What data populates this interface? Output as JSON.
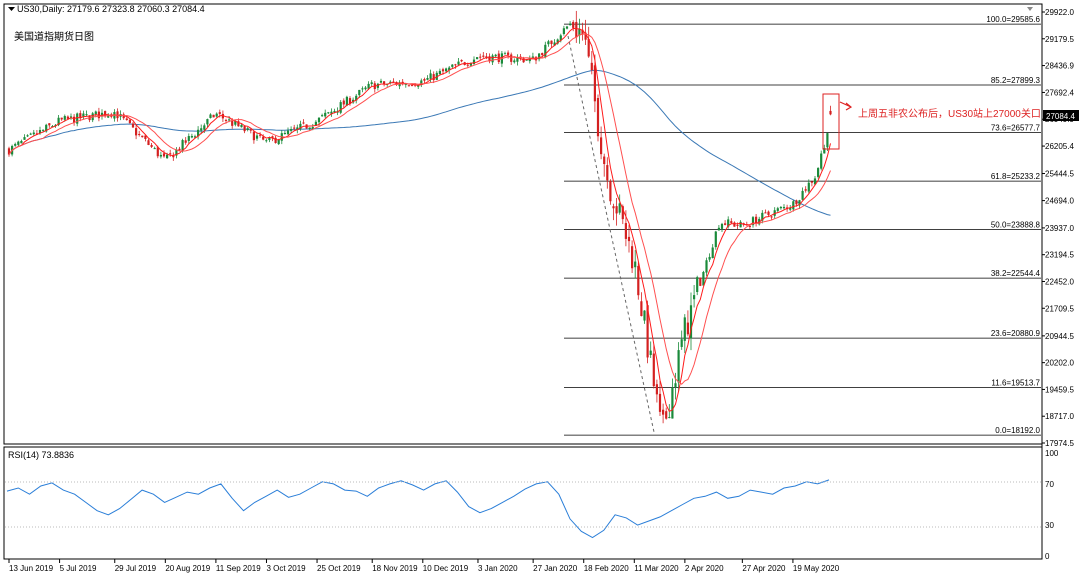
{
  "window": {
    "symbol_line": "US30,Daily:  27179.6 27323.8 27060.3 27084.4",
    "subtitle": "美国道指期货日图",
    "price_tag": "27084.4"
  },
  "annotation": "上周五非农公布后，US30站上27000关口",
  "colors": {
    "up_candle": "#1a8a3a",
    "down_candle": "#d42020",
    "ma_fast": "#ff1a1a",
    "ma_slow": "#ff5050",
    "ma_long": "#3a78b5",
    "rsi_line": "#2a7ed8",
    "fib_line": "#000000",
    "annotation": "#d22222"
  },
  "chart_data": [
    {
      "type": "candlestick",
      "name": "US30 Daily",
      "last": {
        "open": 27179.6,
        "high": 27323.8,
        "low": 27060.3,
        "close": 27084.4
      },
      "ylim": [
        17974.5,
        29922.0
      ],
      "y_ticks": [
        "29922.0",
        "29179.5",
        "28436.9",
        "27692.4",
        "26949.9",
        "26205.4",
        "25444.5",
        "24694.0",
        "23937.0",
        "23194.5",
        "22452.0",
        "21709.5",
        "20944.5",
        "20202.0",
        "19459.5",
        "18717.0",
        "17974.5"
      ],
      "x_ticks": [
        "13 Jun 2019",
        "5 Jul 2019",
        "29 Jul 2019",
        "20 Aug 2019",
        "11 Sep 2019",
        "3 Oct 2019",
        "25 Oct 2019",
        "18 Nov 2019",
        "10 Dec 2019",
        "3 Jan 2020",
        "27 Jan 2020",
        "18 Feb 2020",
        "11 Mar 2020",
        "2 Apr 2020",
        "27 Apr 2020",
        "19 May 2020"
      ],
      "key_points": [
        {
          "date": "13 Jun 2019",
          "price": 26100
        },
        {
          "date": "5 Jul 2019",
          "price": 26900
        },
        {
          "date": "29 Jul 2019",
          "price": 27150
        },
        {
          "date": "20 Aug 2019",
          "price": 25800
        },
        {
          "date": "11 Sep 2019",
          "price": 27100
        },
        {
          "date": "3 Oct 2019",
          "price": 26300
        },
        {
          "date": "25 Oct 2019",
          "price": 26900
        },
        {
          "date": "18 Nov 2019",
          "price": 27900
        },
        {
          "date": "10 Dec 2019",
          "price": 28000
        },
        {
          "date": "3 Jan 2020",
          "price": 28700
        },
        {
          "date": "27 Jan 2020",
          "price": 28600
        },
        {
          "date": "12 Feb 2020",
          "price": 29585.6
        },
        {
          "date": "18 Feb 2020",
          "price": 29300
        },
        {
          "date": "28 Feb 2020",
          "price": 25400
        },
        {
          "date": "11 Mar 2020",
          "price": 23000
        },
        {
          "date": "23 Mar 2020",
          "price": 18192.0
        },
        {
          "date": "2 Apr 2020",
          "price": 21100
        },
        {
          "date": "17 Apr 2020",
          "price": 24100
        },
        {
          "date": "27 Apr 2020",
          "price": 24000
        },
        {
          "date": "19 May 2020",
          "price": 24600
        },
        {
          "date": "29 May 2020",
          "price": 25400
        },
        {
          "date": "5 Jun 2020",
          "price": 27084.4
        }
      ],
      "fib_levels": [
        {
          "label": "100.0=29585.6",
          "value": 29585.6
        },
        {
          "label": "85.2=27899.3",
          "value": 27899.3
        },
        {
          "label": "73.6=26577.7",
          "value": 26577.7
        },
        {
          "label": "61.8=25233.2",
          "value": 25233.2
        },
        {
          "label": "50.0=23888.8",
          "value": 23888.8
        },
        {
          "label": "38.2=22544.4",
          "value": 22544.4
        },
        {
          "label": "23.6=20880.9",
          "value": 20880.9
        },
        {
          "label": "11.6=19513.7",
          "value": 19513.7
        },
        {
          "label": "0.0=18192.0",
          "value": 18192.0
        }
      ]
    },
    {
      "type": "line",
      "name": "RSI(14)",
      "title": "RSI(14) 73.8836",
      "ylim": [
        0,
        100
      ],
      "y_ticks": [
        "100",
        "70",
        "30",
        "0"
      ],
      "values": [
        63,
        66,
        60,
        68,
        71,
        64,
        60,
        52,
        44,
        40,
        46,
        55,
        64,
        60,
        52,
        57,
        62,
        60,
        66,
        70,
        56,
        44,
        52,
        58,
        64,
        57,
        60,
        66,
        72,
        70,
        64,
        63,
        58,
        66,
        70,
        73,
        69,
        64,
        70,
        73,
        62,
        48,
        42,
        46,
        52,
        58,
        65,
        70,
        72,
        60,
        36,
        24,
        18,
        25,
        40,
        37,
        30,
        34,
        38,
        44,
        50,
        56,
        58,
        62,
        56,
        58,
        64,
        62,
        60,
        66,
        68,
        72,
        70,
        73.88
      ]
    }
  ]
}
